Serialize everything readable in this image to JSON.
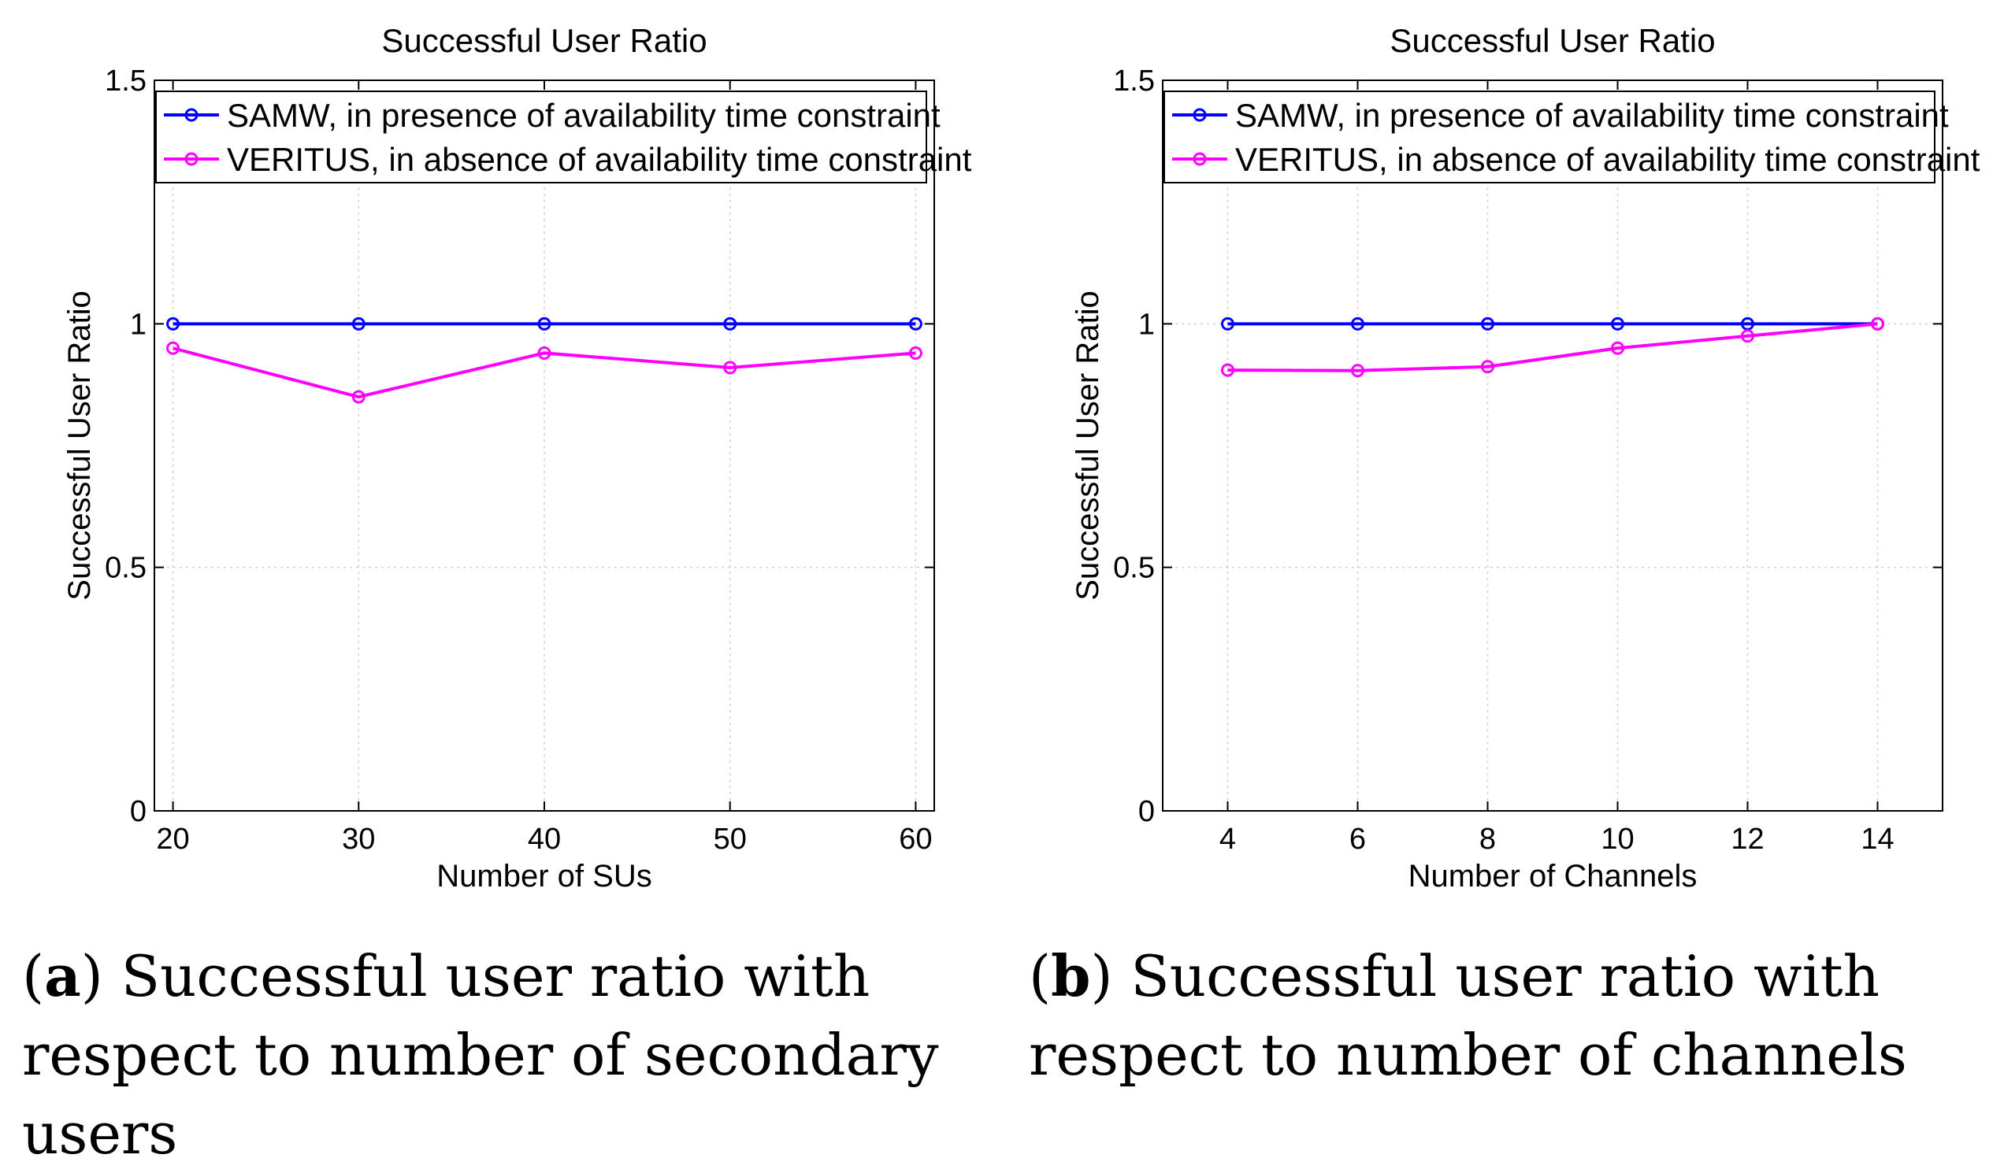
{
  "chart_data": [
    {
      "type": "line",
      "title": "Successful User Ratio",
      "xlabel": "Number of SUs",
      "ylabel": "Successful User Ratio",
      "x": [
        20,
        30,
        40,
        50,
        60
      ],
      "xlim": [
        19,
        61
      ],
      "ylim": [
        0,
        1.5
      ],
      "xticks": [
        "20",
        "30",
        "40",
        "50",
        "60"
      ],
      "yticks": [
        "0",
        "0.5",
        "1",
        "1.5"
      ],
      "grid": true,
      "legend_position": "top",
      "series": [
        {
          "name": "SAMW, in presence of availability time constraint",
          "color": "#0000ff",
          "values": [
            1,
            1,
            1,
            1,
            1
          ]
        },
        {
          "name": "VERITUS, in absence of availability time constraint",
          "color": "#ff00ff",
          "values": [
            0.95,
            0.85,
            0.94,
            0.91,
            0.94
          ]
        }
      ],
      "caption_label": "a",
      "caption_text": "Successful user ratio with respect to number of secondary users"
    },
    {
      "type": "line",
      "title": "Successful User Ratio",
      "xlabel": "Number of Channels",
      "ylabel": "Successful User Ratio",
      "x": [
        4,
        6,
        8,
        10,
        12,
        14
      ],
      "xlim": [
        3,
        15
      ],
      "ylim": [
        0,
        1.5
      ],
      "xticks": [
        "4",
        "6",
        "8",
        "10",
        "12",
        "14"
      ],
      "yticks": [
        "0",
        "0.5",
        "1",
        "1.5"
      ],
      "grid": true,
      "legend_position": "top",
      "series": [
        {
          "name": "SAMW, in presence of availability time constraint",
          "color": "#0000ff",
          "values": [
            1,
            1,
            1,
            1,
            1,
            1
          ]
        },
        {
          "name": "VERITUS, in absence of availability time constraint",
          "color": "#ff00ff",
          "values": [
            0.905,
            0.904,
            0.912,
            0.95,
            0.975,
            1
          ]
        }
      ],
      "caption_label": "b",
      "caption_text": "Successful user ratio with respect to number of channels"
    }
  ]
}
